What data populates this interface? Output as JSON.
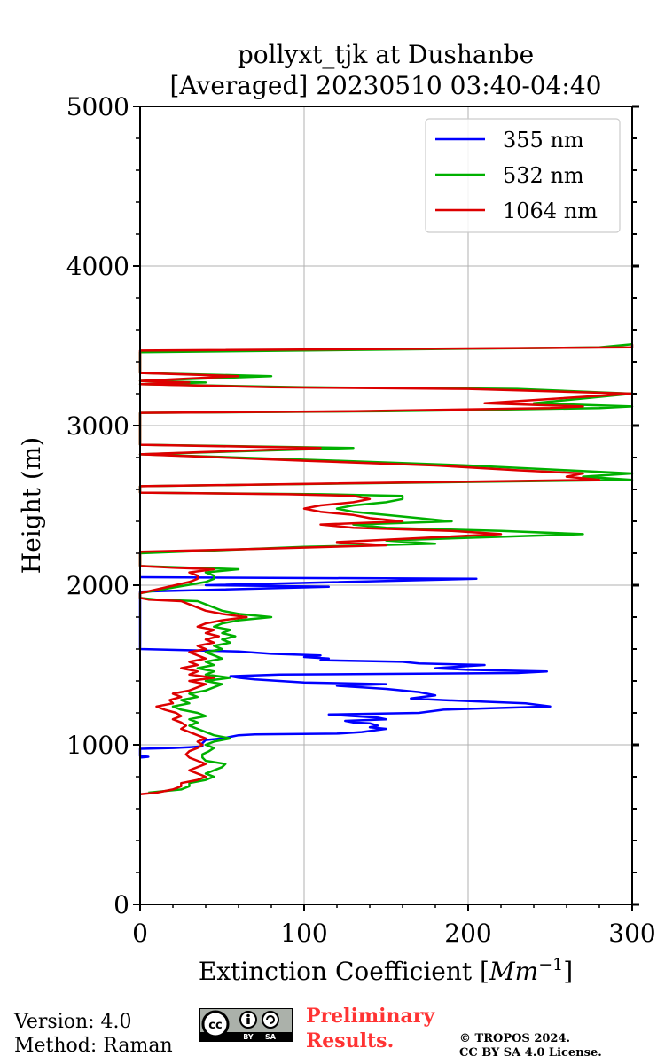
{
  "chart_data": {
    "type": "line",
    "title": "pollyxt_tjk at Dushanbe",
    "subtitle": "[Averaged] 20230510 03:40-04:40",
    "xlabel": "Extinction Coefficient [",
    "xlabel_unit": "Mm",
    "xlabel_exp": "−1",
    "xlabel_end": "]",
    "ylabel": "Height (m)",
    "xlim": [
      0,
      300
    ],
    "ylim": [
      0,
      5000
    ],
    "x_ticks": [
      0,
      100,
      200,
      300
    ],
    "y_ticks": [
      0,
      1000,
      2000,
      3000,
      4000,
      5000
    ],
    "grid": true,
    "legend_position": "top-right",
    "series": [
      {
        "name": "355 nm",
        "color": "#0000ff",
        "points": [
          [
            0,
            920
          ],
          [
            5,
            925
          ],
          [
            0,
            930
          ],
          [
            0,
            975
          ],
          [
            20,
            980
          ],
          [
            30,
            985
          ],
          [
            38,
            990
          ],
          [
            38,
            1010
          ],
          [
            40,
            1030
          ],
          [
            50,
            1040
          ],
          [
            55,
            1050
          ],
          [
            60,
            1060
          ],
          [
            70,
            1065
          ],
          [
            120,
            1070
          ],
          [
            135,
            1080
          ],
          [
            150,
            1100
          ],
          [
            140,
            1110
          ],
          [
            145,
            1120
          ],
          [
            140,
            1135
          ],
          [
            130,
            1140
          ],
          [
            125,
            1150
          ],
          [
            150,
            1160
          ],
          [
            145,
            1170
          ],
          [
            130,
            1180
          ],
          [
            115,
            1190
          ],
          [
            170,
            1200
          ],
          [
            185,
            1220
          ],
          [
            250,
            1240
          ],
          [
            235,
            1260
          ],
          [
            185,
            1280
          ],
          [
            165,
            1290
          ],
          [
            180,
            1310
          ],
          [
            170,
            1330
          ],
          [
            150,
            1350
          ],
          [
            120,
            1370
          ],
          [
            150,
            1380
          ],
          [
            100,
            1390
          ],
          [
            70,
            1410
          ],
          [
            60,
            1420
          ],
          [
            55,
            1430
          ],
          [
            85,
            1440
          ],
          [
            230,
            1450
          ],
          [
            248,
            1460
          ],
          [
            200,
            1470
          ],
          [
            180,
            1480
          ],
          [
            210,
            1500
          ],
          [
            170,
            1510
          ],
          [
            160,
            1520
          ],
          [
            110,
            1530
          ],
          [
            115,
            1540
          ],
          [
            100,
            1550
          ],
          [
            110,
            1560
          ],
          [
            80,
            1570
          ],
          [
            60,
            1585
          ],
          [
            0,
            1600
          ],
          [
            0,
            1960
          ],
          [
            115,
            1990
          ],
          [
            80,
            1995
          ],
          [
            40,
            2000
          ],
          [
            205,
            2040
          ],
          [
            0,
            2050
          ]
        ]
      },
      {
        "name": "532 nm",
        "color": "#00b000",
        "points": [
          [
            5,
            700
          ],
          [
            25,
            720
          ],
          [
            30,
            740
          ],
          [
            30,
            760
          ],
          [
            40,
            780
          ],
          [
            45,
            800
          ],
          [
            40,
            820
          ],
          [
            45,
            840
          ],
          [
            50,
            860
          ],
          [
            52,
            880
          ],
          [
            40,
            900
          ],
          [
            38,
            920
          ],
          [
            38,
            940
          ],
          [
            42,
            960
          ],
          [
            45,
            980
          ],
          [
            40,
            1000
          ],
          [
            45,
            1020
          ],
          [
            55,
            1040
          ],
          [
            45,
            1060
          ],
          [
            40,
            1080
          ],
          [
            35,
            1100
          ],
          [
            30,
            1120
          ],
          [
            35,
            1140
          ],
          [
            30,
            1160
          ],
          [
            40,
            1180
          ],
          [
            35,
            1200
          ],
          [
            25,
            1220
          ],
          [
            20,
            1240
          ],
          [
            30,
            1260
          ],
          [
            25,
            1280
          ],
          [
            35,
            1300
          ],
          [
            30,
            1320
          ],
          [
            40,
            1340
          ],
          [
            45,
            1360
          ],
          [
            50,
            1380
          ],
          [
            40,
            1400
          ],
          [
            55,
            1420
          ],
          [
            40,
            1440
          ],
          [
            45,
            1460
          ],
          [
            35,
            1480
          ],
          [
            45,
            1500
          ],
          [
            40,
            1520
          ],
          [
            50,
            1540
          ],
          [
            45,
            1560
          ],
          [
            40,
            1580
          ],
          [
            50,
            1600
          ],
          [
            45,
            1620
          ],
          [
            55,
            1640
          ],
          [
            50,
            1660
          ],
          [
            58,
            1680
          ],
          [
            50,
            1700
          ],
          [
            55,
            1720
          ],
          [
            45,
            1740
          ],
          [
            50,
            1760
          ],
          [
            60,
            1780
          ],
          [
            80,
            1800
          ],
          [
            60,
            1820
          ],
          [
            50,
            1840
          ],
          [
            45,
            1860
          ],
          [
            40,
            1880
          ],
          [
            35,
            1900
          ],
          [
            10,
            1910
          ],
          [
            0,
            1920
          ],
          [
            0,
            1950
          ],
          [
            40,
            2020
          ],
          [
            45,
            2040
          ],
          [
            45,
            2060
          ],
          [
            40,
            2080
          ],
          [
            60,
            2100
          ],
          [
            30,
            2110
          ],
          [
            0,
            2120
          ],
          [
            0,
            2200
          ],
          [
            100,
            2240
          ],
          [
            180,
            2260
          ],
          [
            150,
            2280
          ],
          [
            270,
            2320
          ],
          [
            220,
            2340
          ],
          [
            150,
            2360
          ],
          [
            130,
            2380
          ],
          [
            190,
            2400
          ],
          [
            170,
            2420
          ],
          [
            150,
            2440
          ],
          [
            130,
            2460
          ],
          [
            120,
            2480
          ],
          [
            130,
            2500
          ],
          [
            150,
            2520
          ],
          [
            160,
            2540
          ],
          [
            160,
            2560
          ],
          [
            110,
            2570
          ],
          [
            0,
            2580
          ],
          [
            0,
            2620
          ],
          [
            300,
            2660
          ],
          [
            270,
            2680
          ],
          [
            300,
            2700
          ],
          [
            260,
            2720
          ],
          [
            200,
            2750
          ],
          [
            120,
            2780
          ],
          [
            0,
            2820
          ],
          [
            130,
            2860
          ],
          [
            0,
            2880
          ],
          [
            0,
            3080
          ],
          [
            150,
            3090
          ],
          [
            280,
            3110
          ],
          [
            300,
            3120
          ],
          [
            240,
            3140
          ],
          [
            300,
            3200
          ],
          [
            230,
            3230
          ],
          [
            100,
            3240
          ],
          [
            0,
            3260
          ],
          [
            40,
            3270
          ],
          [
            0,
            3280
          ],
          [
            80,
            3310
          ],
          [
            0,
            3330
          ],
          [
            0,
            3460
          ],
          [
            280,
            3490
          ],
          [
            300,
            3510
          ]
        ]
      },
      {
        "name": "1064 nm",
        "color": "#dd0000",
        "points": [
          [
            0,
            690
          ],
          [
            10,
            700
          ],
          [
            20,
            720
          ],
          [
            25,
            740
          ],
          [
            25,
            760
          ],
          [
            35,
            780
          ],
          [
            40,
            800
          ],
          [
            35,
            820
          ],
          [
            30,
            840
          ],
          [
            35,
            860
          ],
          [
            40,
            880
          ],
          [
            35,
            900
          ],
          [
            30,
            920
          ],
          [
            28,
            940
          ],
          [
            30,
            960
          ],
          [
            35,
            980
          ],
          [
            38,
            1000
          ],
          [
            35,
            1020
          ],
          [
            40,
            1040
          ],
          [
            35,
            1060
          ],
          [
            30,
            1080
          ],
          [
            25,
            1100
          ],
          [
            28,
            1120
          ],
          [
            25,
            1140
          ],
          [
            20,
            1160
          ],
          [
            25,
            1180
          ],
          [
            22,
            1200
          ],
          [
            15,
            1220
          ],
          [
            10,
            1240
          ],
          [
            20,
            1260
          ],
          [
            18,
            1280
          ],
          [
            25,
            1300
          ],
          [
            20,
            1320
          ],
          [
            30,
            1340
          ],
          [
            35,
            1360
          ],
          [
            40,
            1380
          ],
          [
            30,
            1400
          ],
          [
            45,
            1420
          ],
          [
            30,
            1440
          ],
          [
            35,
            1460
          ],
          [
            25,
            1480
          ],
          [
            35,
            1500
          ],
          [
            30,
            1520
          ],
          [
            40,
            1540
          ],
          [
            35,
            1560
          ],
          [
            30,
            1580
          ],
          [
            40,
            1600
          ],
          [
            35,
            1620
          ],
          [
            45,
            1640
          ],
          [
            40,
            1660
          ],
          [
            48,
            1680
          ],
          [
            40,
            1700
          ],
          [
            45,
            1720
          ],
          [
            35,
            1740
          ],
          [
            40,
            1760
          ],
          [
            50,
            1780
          ],
          [
            65,
            1800
          ],
          [
            50,
            1820
          ],
          [
            40,
            1840
          ],
          [
            35,
            1860
          ],
          [
            30,
            1880
          ],
          [
            25,
            1900
          ],
          [
            5,
            1910
          ],
          [
            0,
            1920
          ],
          [
            0,
            1950
          ],
          [
            30,
            2020
          ],
          [
            35,
            2040
          ],
          [
            35,
            2060
          ],
          [
            30,
            2080
          ],
          [
            45,
            2100
          ],
          [
            20,
            2110
          ],
          [
            0,
            2120
          ],
          [
            0,
            2210
          ],
          [
            80,
            2230
          ],
          [
            150,
            2250
          ],
          [
            120,
            2270
          ],
          [
            220,
            2320
          ],
          [
            190,
            2340
          ],
          [
            130,
            2360
          ],
          [
            110,
            2380
          ],
          [
            160,
            2400
          ],
          [
            140,
            2420
          ],
          [
            130,
            2440
          ],
          [
            110,
            2460
          ],
          [
            100,
            2480
          ],
          [
            110,
            2500
          ],
          [
            130,
            2520
          ],
          [
            140,
            2540
          ],
          [
            130,
            2560
          ],
          [
            90,
            2570
          ],
          [
            0,
            2580
          ],
          [
            0,
            2620
          ],
          [
            280,
            2660
          ],
          [
            260,
            2680
          ],
          [
            270,
            2700
          ],
          [
            230,
            2720
          ],
          [
            180,
            2750
          ],
          [
            100,
            2780
          ],
          [
            0,
            2820
          ],
          [
            110,
            2860
          ],
          [
            0,
            2880
          ],
          [
            0,
            3080
          ],
          [
            130,
            3090
          ],
          [
            250,
            3110
          ],
          [
            270,
            3120
          ],
          [
            210,
            3140
          ],
          [
            300,
            3200
          ],
          [
            200,
            3230
          ],
          [
            80,
            3240
          ],
          [
            0,
            3260
          ],
          [
            30,
            3270
          ],
          [
            0,
            3280
          ],
          [
            60,
            3310
          ],
          [
            0,
            3330
          ],
          [
            0,
            3470
          ],
          [
            300,
            3490
          ],
          [
            300,
            3510
          ]
        ]
      }
    ]
  },
  "footer": {
    "version": "Version: 4.0",
    "method": "Method: Raman",
    "license_badge": "cc by sa badge",
    "badge_by": "BY",
    "badge_sa": "SA",
    "preliminary_line1": "Preliminary",
    "preliminary_line2": "Results.",
    "copyright_line1": "© TROPOS 2024.",
    "copyright_line2": "CC BY SA 4.0 License."
  }
}
